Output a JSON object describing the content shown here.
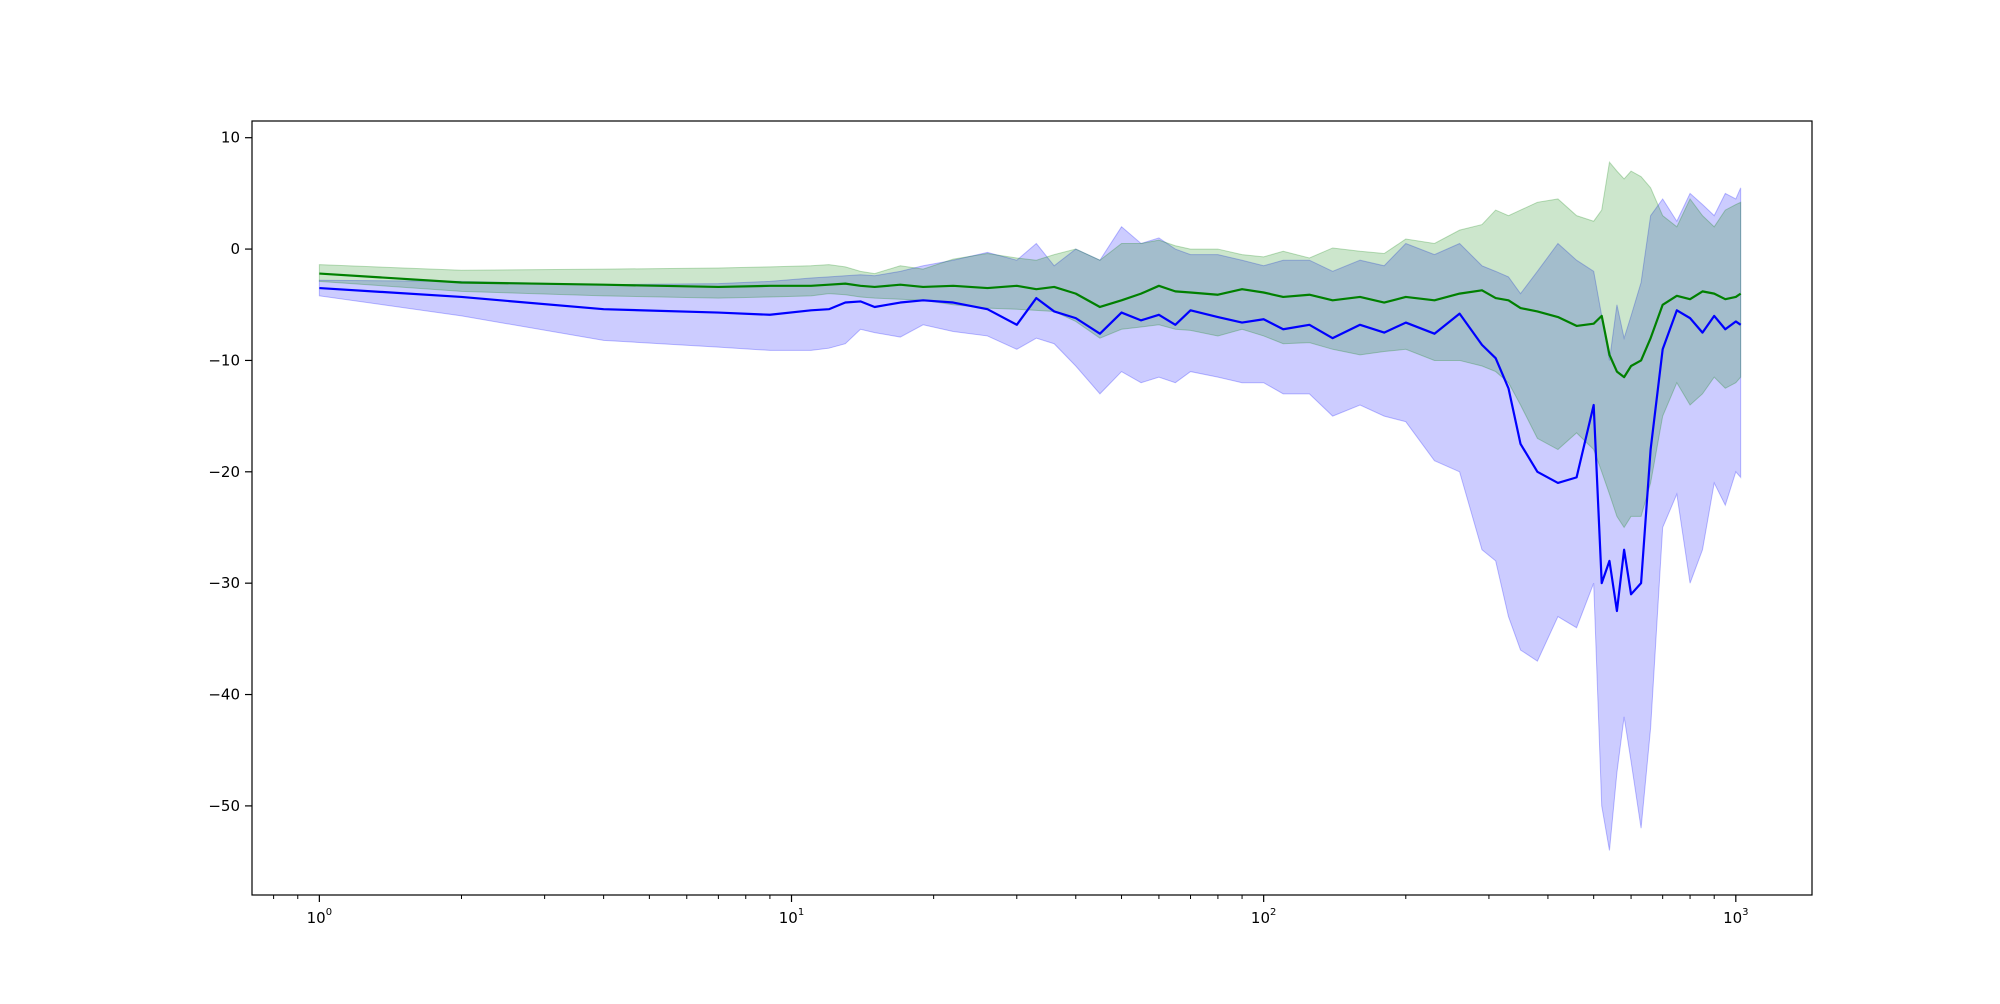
{
  "chart_data": {
    "type": "line",
    "title": "",
    "xlabel": "",
    "ylabel": "",
    "x_scale": "log",
    "xlim": [
      0.72,
      1450
    ],
    "ylim": [
      -58,
      11.5
    ],
    "grid": false,
    "legend": "none",
    "x_ticks": [
      {
        "value": 1,
        "base": "10",
        "exp": "0"
      },
      {
        "value": 10,
        "base": "10",
        "exp": "1"
      },
      {
        "value": 100,
        "base": "10",
        "exp": "2"
      },
      {
        "value": 1000,
        "base": "10",
        "exp": "3"
      }
    ],
    "y_ticks": [
      10,
      0,
      -10,
      -20,
      -30,
      -40,
      -50
    ],
    "y_tick_labels": [
      "10",
      "0",
      "−10",
      "−20",
      "−30",
      "−40",
      "−50"
    ],
    "series": [
      {
        "color": "#0000ff",
        "band_color": "#0000ff",
        "band_opacity": 0.2,
        "x": [
          1,
          2,
          4,
          7,
          9,
          11,
          12,
          13,
          14,
          15,
          17,
          19,
          22,
          26,
          30,
          33,
          36,
          40,
          45,
          50,
          55,
          60,
          65,
          70,
          80,
          90,
          100,
          110,
          125,
          140,
          160,
          180,
          200,
          230,
          260,
          290,
          310,
          330,
          350,
          380,
          420,
          460,
          500,
          520,
          540,
          560,
          580,
          600,
          630,
          660,
          700,
          750,
          800,
          850,
          900,
          950,
          1000,
          1024
        ],
        "y": [
          -3.5,
          -4.3,
          -5.4,
          -5.7,
          -5.9,
          -5.5,
          -5.4,
          -4.8,
          -4.7,
          -5.2,
          -4.8,
          -4.6,
          -4.8,
          -5.4,
          -6.8,
          -4.4,
          -5.6,
          -6.2,
          -7.6,
          -5.7,
          -6.4,
          -5.9,
          -6.8,
          -5.5,
          -6.1,
          -6.6,
          -6.3,
          -7.2,
          -6.8,
          -8.0,
          -6.8,
          -7.5,
          -6.6,
          -7.6,
          -5.8,
          -8.6,
          -9.8,
          -12.5,
          -17.5,
          -20.0,
          -21.0,
          -20.5,
          -14.0,
          -30.0,
          -28.0,
          -32.5,
          -27.0,
          -31.0,
          -30.0,
          -18.0,
          -9.0,
          -5.5,
          -6.2,
          -7.5,
          -6.0,
          -7.2,
          -6.5,
          -6.8
        ],
        "upper": [
          -2.8,
          -2.9,
          -3.2,
          -3.1,
          -2.9,
          -2.6,
          -2.5,
          -2.4,
          -2.3,
          -2.4,
          -2.0,
          -1.5,
          -1.0,
          -0.3,
          -1.0,
          0.5,
          -1.5,
          0.0,
          -1.0,
          2.0,
          0.5,
          1.0,
          0.0,
          -0.5,
          -0.5,
          -1.0,
          -1.5,
          -1.0,
          -1.0,
          -2.0,
          -1.0,
          -1.5,
          0.5,
          -0.5,
          0.5,
          -1.5,
          -2.0,
          -2.5,
          -4.0,
          -2.0,
          0.5,
          -1.0,
          -2.0,
          -6.0,
          -10.0,
          -5.0,
          -8.0,
          -6.0,
          -3.0,
          3.0,
          4.5,
          2.5,
          5.0,
          4.0,
          3.0,
          5.0,
          4.5,
          5.5
        ],
        "lower": [
          -4.2,
          -6.0,
          -8.2,
          -8.8,
          -9.1,
          -9.1,
          -8.9,
          -8.5,
          -7.2,
          -7.5,
          -7.9,
          -6.8,
          -7.4,
          -7.8,
          -9.0,
          -8.0,
          -8.5,
          -10.5,
          -13.0,
          -11.0,
          -12.0,
          -11.5,
          -12.0,
          -11.0,
          -11.5,
          -12.0,
          -12.0,
          -13.0,
          -13.0,
          -15.0,
          -14.0,
          -15.0,
          -15.5,
          -19.0,
          -20.0,
          -27.0,
          -28.0,
          -33.0,
          -36.0,
          -37.0,
          -33.0,
          -34.0,
          -30.0,
          -50.0,
          -54.0,
          -47.0,
          -42.0,
          -46.0,
          -52.0,
          -43.0,
          -25.0,
          -22.0,
          -30.0,
          -27.0,
          -21.0,
          -23.0,
          -20.0,
          -20.5
        ]
      },
      {
        "color": "#008000",
        "band_color": "#008000",
        "band_opacity": 0.2,
        "x": [
          1,
          2,
          4,
          7,
          9,
          11,
          12,
          13,
          14,
          15,
          17,
          19,
          22,
          26,
          30,
          33,
          36,
          40,
          45,
          50,
          55,
          60,
          65,
          70,
          80,
          90,
          100,
          110,
          125,
          140,
          160,
          180,
          200,
          230,
          260,
          290,
          310,
          330,
          350,
          380,
          420,
          460,
          500,
          520,
          540,
          560,
          580,
          600,
          630,
          660,
          700,
          750,
          800,
          850,
          900,
          950,
          1000,
          1024
        ],
        "y": [
          -2.2,
          -3.0,
          -3.2,
          -3.4,
          -3.3,
          -3.3,
          -3.2,
          -3.1,
          -3.3,
          -3.4,
          -3.2,
          -3.4,
          -3.3,
          -3.5,
          -3.3,
          -3.6,
          -3.4,
          -4.0,
          -5.2,
          -4.6,
          -4.0,
          -3.3,
          -3.8,
          -3.9,
          -4.1,
          -3.6,
          -3.9,
          -4.3,
          -4.1,
          -4.6,
          -4.3,
          -4.8,
          -4.3,
          -4.6,
          -4.0,
          -3.7,
          -4.4,
          -4.6,
          -5.3,
          -5.6,
          -6.1,
          -6.9,
          -6.7,
          -6.0,
          -9.5,
          -11.0,
          -11.5,
          -10.5,
          -10.0,
          -8.0,
          -5.0,
          -4.2,
          -4.5,
          -3.8,
          -4.0,
          -4.5,
          -4.3,
          -4.0
        ],
        "upper": [
          -1.4,
          -1.9,
          -1.8,
          -1.7,
          -1.6,
          -1.5,
          -1.4,
          -1.6,
          -2.0,
          -2.2,
          -1.5,
          -1.8,
          -0.9,
          -0.4,
          -0.8,
          -1.0,
          -0.5,
          0.0,
          -1.0,
          0.5,
          0.5,
          0.8,
          0.3,
          0.0,
          0.0,
          -0.5,
          -0.7,
          -0.2,
          -0.8,
          0.1,
          -0.2,
          -0.4,
          0.9,
          0.5,
          1.7,
          2.2,
          3.5,
          3.0,
          3.5,
          4.2,
          4.5,
          3.0,
          2.5,
          3.5,
          7.8,
          7.0,
          6.3,
          7.0,
          6.5,
          5.5,
          3.0,
          2.0,
          4.5,
          3.0,
          2.0,
          3.5,
          4.0,
          4.2
        ],
        "lower": [
          -2.9,
          -3.8,
          -4.2,
          -4.4,
          -4.3,
          -4.2,
          -4.0,
          -4.1,
          -4.3,
          -4.4,
          -4.5,
          -4.6,
          -5.0,
          -5.3,
          -5.4,
          -5.5,
          -5.6,
          -6.5,
          -8.0,
          -7.2,
          -7.0,
          -6.8,
          -7.2,
          -7.3,
          -7.8,
          -7.2,
          -7.8,
          -8.5,
          -8.4,
          -9.0,
          -9.5,
          -9.2,
          -9.0,
          -10.0,
          -10.0,
          -10.5,
          -11.0,
          -12.0,
          -14.0,
          -17.0,
          -18.0,
          -16.5,
          -18.0,
          -20.0,
          -22.0,
          -24.0,
          -25.0,
          -24.0,
          -24.0,
          -21.0,
          -15.0,
          -12.0,
          -14.0,
          -13.0,
          -11.5,
          -12.5,
          -12.0,
          -11.5
        ]
      }
    ]
  }
}
